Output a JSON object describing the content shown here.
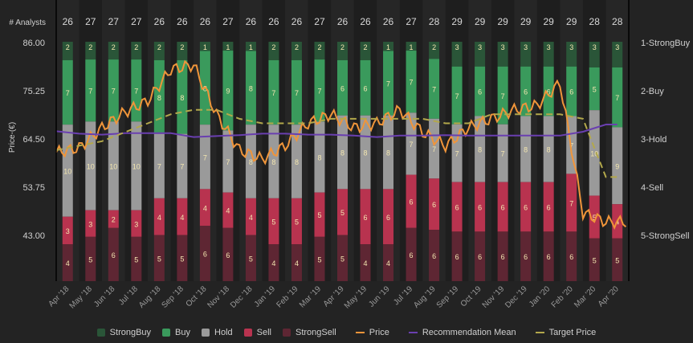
{
  "chart_data": {
    "type": "bar",
    "stacked": true,
    "title": "",
    "analysts_label": "# Analysts",
    "ylabel": "Price (€)",
    "y_ticks": [
      "86.00",
      "75.25",
      "64.50",
      "53.75",
      "43.00"
    ],
    "ylim": [
      32.8,
      86.0
    ],
    "y_right_ticks": [
      "1-StrongBuy",
      "2-Buy",
      "3-Hold",
      "4-Sell",
      "5-StrongSell"
    ],
    "categories": [
      "Apr '18",
      "May '18",
      "Jun '18",
      "Jul '18",
      "Aug '18",
      "Sep '18",
      "Oct '18",
      "Nov '18",
      "Dec '18",
      "Jan '19",
      "Feb '19",
      "Mar '19",
      "Apr '19",
      "May '19",
      "Jun '19",
      "Jul '19",
      "Aug '19",
      "Sep '19",
      "Oct '19",
      "Nov '19",
      "Dec '19",
      "Jan '20",
      "Feb '20",
      "Mar '20",
      "Apr '20"
    ],
    "analysts": [
      26,
      27,
      27,
      27,
      26,
      26,
      26,
      27,
      26,
      26,
      26,
      27,
      26,
      26,
      26,
      27,
      28,
      29,
      29,
      29,
      29,
      29,
      29,
      28,
      28
    ],
    "series": [
      {
        "name": "StrongBuy",
        "color": "#2a5538",
        "values": [
          2,
          2,
          2,
          2,
          2,
          2,
          1,
          1,
          1,
          2,
          2,
          2,
          2,
          2,
          1,
          1,
          2,
          3,
          3,
          3,
          3,
          3,
          3,
          3,
          3
        ]
      },
      {
        "name": "Buy",
        "color": "#3a9a5c",
        "values": [
          7,
          7,
          7,
          7,
          8,
          8,
          8,
          9,
          8,
          7,
          7,
          7,
          6,
          6,
          7,
          7,
          7,
          7,
          6,
          7,
          6,
          6,
          6,
          5,
          7
        ]
      },
      {
        "name": "Hold",
        "color": "#9a9a9a",
        "values": [
          10,
          10,
          10,
          10,
          7,
          7,
          7,
          7,
          8,
          8,
          8,
          8,
          8,
          8,
          8,
          7,
          7,
          7,
          8,
          7,
          8,
          8,
          7,
          10,
          9
        ]
      },
      {
        "name": "Sell",
        "color": "#b8334f",
        "values": [
          3,
          3,
          2,
          3,
          4,
          4,
          4,
          4,
          4,
          5,
          5,
          5,
          5,
          6,
          6,
          6,
          6,
          6,
          6,
          6,
          6,
          6,
          7,
          5,
          4
        ]
      },
      {
        "name": "StrongSell",
        "color": "#5e2633",
        "values": [
          4,
          5,
          6,
          5,
          5,
          5,
          6,
          6,
          5,
          4,
          4,
          5,
          5,
          4,
          4,
          6,
          6,
          6,
          6,
          6,
          6,
          6,
          6,
          5,
          5
        ]
      }
    ],
    "lines": [
      {
        "name": "Price",
        "color": "#f0953a",
        "style": "solid",
        "values": [
          61.5,
          62.5,
          67,
          70.5,
          73,
          80,
          81,
          70,
          62,
          60,
          63,
          68,
          70,
          67,
          68,
          71,
          66,
          63,
          67,
          69,
          71,
          72,
          77,
          48,
          46
        ]
      },
      {
        "name": "Recommendation Mean",
        "color": "#6a3fb0",
        "style": "solid",
        "axis": "right",
        "values": [
          2.84,
          2.89,
          2.91,
          2.88,
          2.88,
          2.88,
          2.96,
          2.94,
          2.92,
          2.89,
          2.89,
          2.91,
          2.91,
          2.93,
          2.96,
          2.93,
          2.93,
          2.92,
          2.93,
          2.93,
          2.93,
          2.93,
          2.93,
          2.85,
          2.7
        ]
      },
      {
        "name": "Target Price",
        "color": "#b3a84b",
        "style": "dashed",
        "values": [
          62,
          63,
          64,
          66,
          68,
          70,
          71,
          71,
          69,
          68,
          68,
          68,
          69,
          69,
          69,
          69,
          69,
          68,
          68,
          70,
          70,
          70,
          70,
          69,
          56
        ]
      }
    ],
    "legend": [
      "StrongBuy",
      "Buy",
      "Hold",
      "Sell",
      "StrongSell",
      "Price",
      "Recommendation Mean",
      "Target Price"
    ],
    "legend_position": "bottom",
    "grid": false
  }
}
